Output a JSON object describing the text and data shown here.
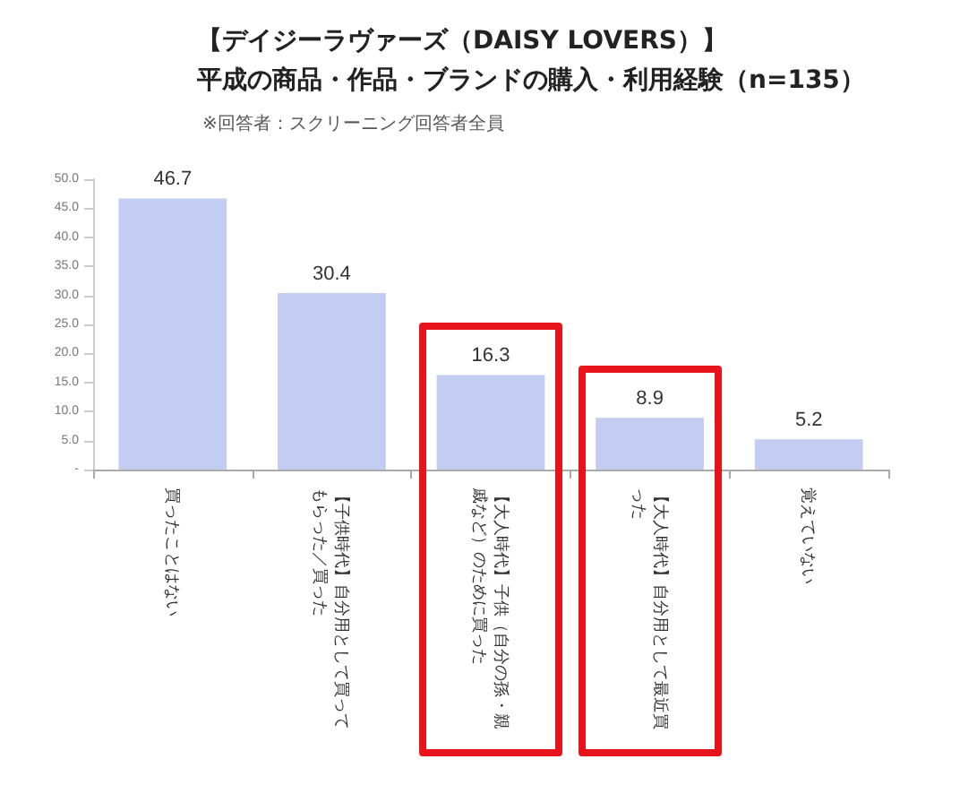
{
  "chart_data": {
    "type": "bar",
    "title": "【デイジーラヴァーズ（DAISY LOVERS）】",
    "subtitle": "平成の商品・作品・ブランドの購入・利用経験（n=135）",
    "annotations": [
      "※回答者：スクリーニング回答者全員"
    ],
    "categories": [
      "買ったことはない",
      "【子供時代】自分用として買ってもらった／買った",
      "【大人時代】子供（自分の孫・親戚など）のために買った",
      "【大人時代】自分用として最近買った",
      "覚えていない"
    ],
    "values": [
      46.7,
      30.4,
      16.3,
      8.9,
      5.2
    ],
    "color": "#c3ccf1",
    "data_labels": true,
    "ylim": [
      0,
      50
    ],
    "yticks": [
      {
        "value": 0,
        "label": "-"
      },
      {
        "value": 5,
        "label": "5.0"
      },
      {
        "value": 10,
        "label": "10.0"
      },
      {
        "value": 15,
        "label": "15.0"
      },
      {
        "value": 20,
        "label": "20.0"
      },
      {
        "value": 25,
        "label": "25.0"
      },
      {
        "value": 30,
        "label": "30.0"
      },
      {
        "value": 35,
        "label": "35.0"
      },
      {
        "value": 40,
        "label": "40.0"
      },
      {
        "value": 45,
        "label": "45.0"
      },
      {
        "value": 50,
        "label": "50.0"
      }
    ],
    "grid": false
  }
}
